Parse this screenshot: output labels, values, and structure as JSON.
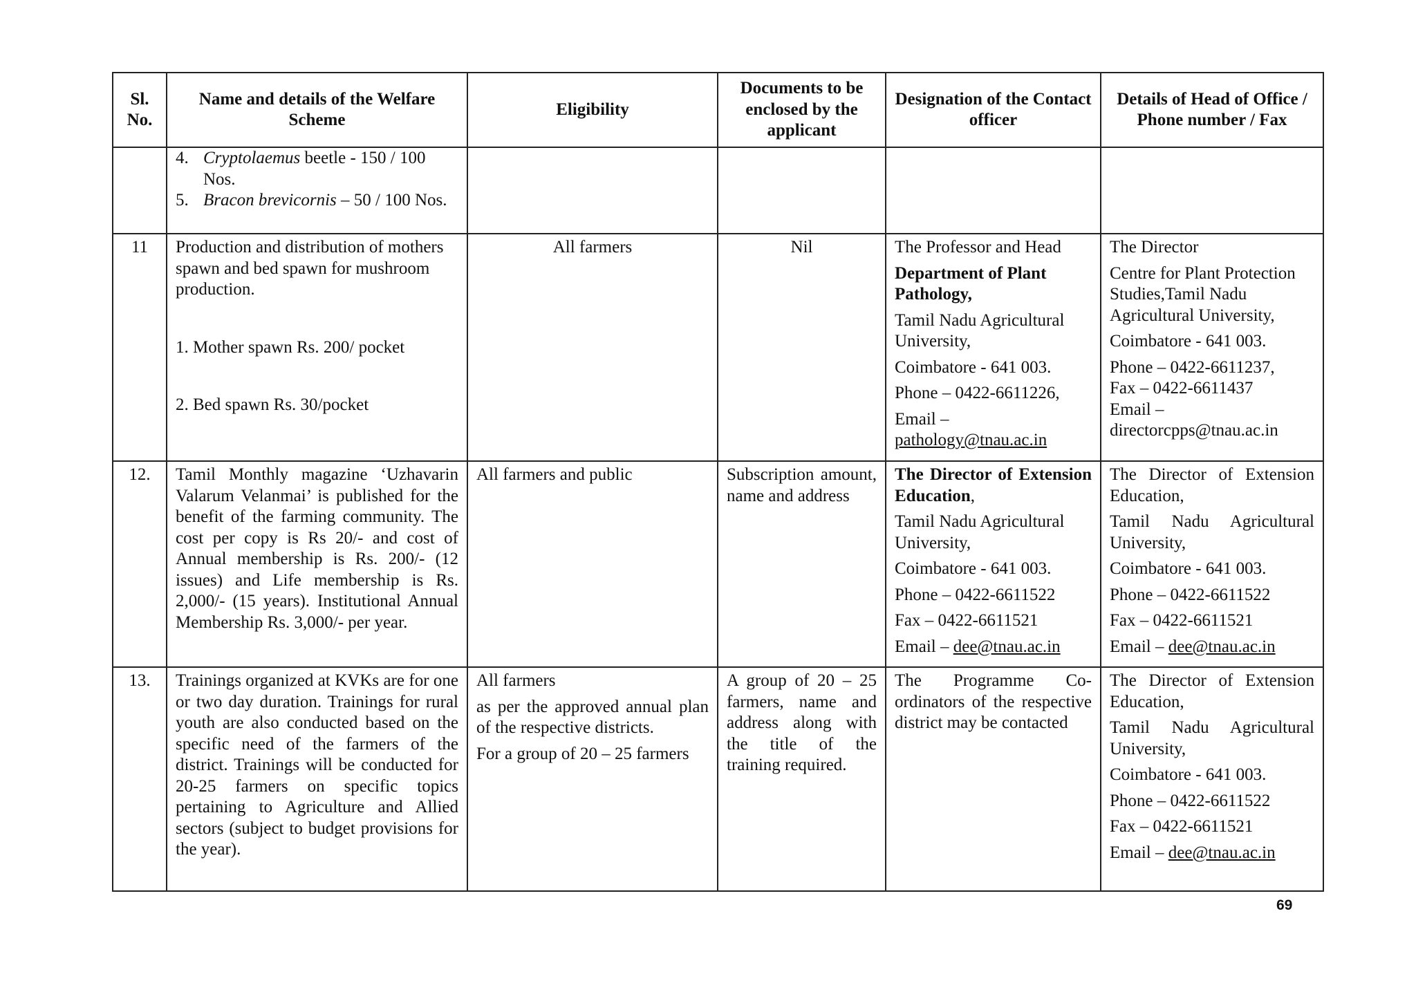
{
  "headers": {
    "sl": "Sl. No.",
    "name": "Name and details of the Welfare Scheme",
    "eligibility": "Eligibility",
    "documents": "Documents to be enclosed by the applicant",
    "designation": "Designation of the Contact officer",
    "head": "Details of Head of Office / Phone number / Fax"
  },
  "continuation": {
    "items": [
      {
        "num": "4.",
        "italic": "Cryptolaemus",
        "rest": " beetle  - 150 / 100 Nos."
      },
      {
        "num": "5.",
        "italic": "Bracon brevicornis",
        "rest": " – 50 / 100 Nos."
      }
    ]
  },
  "rows": [
    {
      "sl": "11",
      "name_intro": "Production and distribution of mothers spawn  and bed spawn for mushroom production.",
      "name_item1": "1. Mother spawn Rs.  200/ pocket",
      "name_item2": "2. Bed spawn Rs. 30/pocket",
      "eligibility": "All farmers",
      "documents": "Nil",
      "designation": {
        "line1": "The Professor and Head",
        "bold": "Department of Plant Pathology,",
        "university": "Tamil Nadu Agricultural University,",
        "city": "Coimbatore  - 641 003.",
        "phone": "Phone – 0422-6611226,",
        "email_label": "Email –",
        "email": "pathology@tnau.ac.in"
      },
      "head": {
        "line1": "The Director",
        "org": "Centre for Plant Protection Studies,Tamil Nadu Agricultural University,",
        "city": "Coimbatore  - 641 003.",
        "phone": "Phone – 0422-6611237,",
        "fax": "Fax – 0422-6611437",
        "email_label": "Email –",
        "email": "directorcpps@tnau.ac.in"
      }
    },
    {
      "sl": "12.",
      "name": "Tamil Monthly magazine ‘Uzhavarin Valarum Velanmai’ is published for the benefit of the farming community. The cost per copy is Rs 20/- and cost of Annual membership is Rs. 200/- (12 issues) and Life membership is Rs. 2,000/- (15 years). Institutional Annual Membership Rs. 3,000/- per year.",
      "eligibility": "All farmers and public",
      "documents": "Subscription amount, name and address",
      "designation": {
        "bold": "The Director of Extension Education",
        "after_bold": ",",
        "university": "Tamil Nadu Agricultural University,",
        "city": "Coimbatore  - 641 003.",
        "phone": "Phone – 0422-6611522",
        "fax": "Fax – 0422-6611521",
        "email_label": "Email – ",
        "email": "dee@tnau.ac.in"
      },
      "head": {
        "line1": "The Director of Extension Education,",
        "university": "Tamil Nadu Agricultural University,",
        "city": "Coimbatore  - 641 003.",
        "phone": "Phone – 0422-6611522",
        "fax": "Fax – 0422-6611521",
        "email_label": "Email – ",
        "email": "dee@tnau.ac.in"
      }
    },
    {
      "sl": "13.",
      "name": "Trainings organized at KVKs are for one or two day duration. Trainings for rural youth are also conducted based on the specific need of the farmers of the district. Trainings will be conducted for 20-25 farmers on specific topics pertaining to Agriculture and Allied sectors (subject to budget provisions for the year).",
      "eligibility_line1": "All farmers",
      "eligibility_line2": "as per the approved annual plan of the respective districts.",
      "eligibility_line3": "For a group of 20 – 25 farmers",
      "documents": "A group of 20 – 25 farmers, name and address along with the title of the training required.",
      "designation": "The Programme Co-ordinators of the respective district may be contacted",
      "head": {
        "line1": "The Director of Extension Education,",
        "university": "Tamil Nadu Agricultural University,",
        "city": "Coimbatore  - 641 003.",
        "phone": "Phone – 0422-6611522",
        "fax": "Fax – 0422-6611521",
        "email_label": "Email – ",
        "email": "dee@tnau.ac.in"
      }
    }
  ],
  "page_number": "69"
}
